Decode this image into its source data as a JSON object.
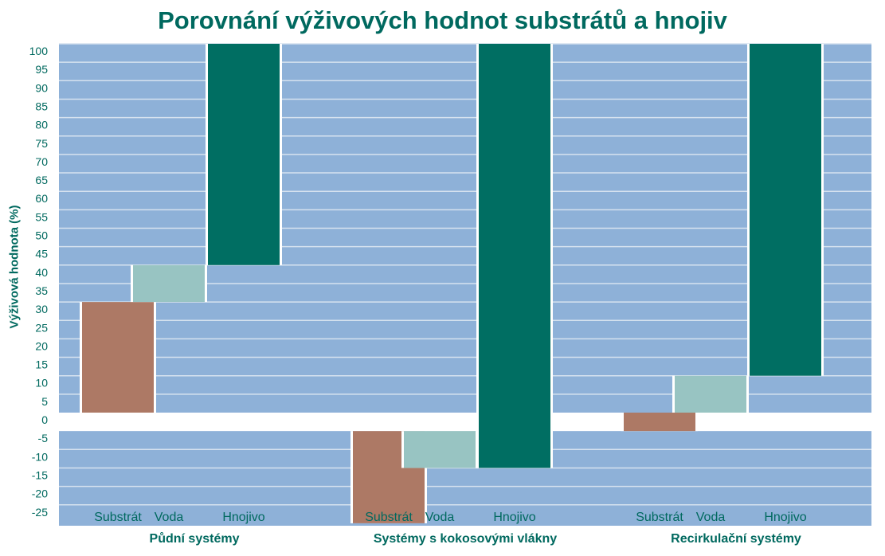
{
  "chart_data": {
    "type": "bar",
    "title": "Porovnání výživových hodnot substrátů a hnojiv",
    "ylabel": "Výživová hodnota (%)",
    "ylim": [
      -25,
      100
    ],
    "yticks": [
      100,
      95,
      90,
      85,
      80,
      75,
      70,
      65,
      60,
      55,
      50,
      45,
      40,
      35,
      30,
      25,
      20,
      15,
      10,
      5,
      0,
      -5,
      -10,
      -15,
      -20,
      -25
    ],
    "ytick_labels": [
      "100",
      "95",
      "90",
      "85",
      "80",
      "75",
      "70",
      "65",
      "60",
      "55",
      "50",
      "45",
      "40",
      "35",
      "30",
      "25",
      "20",
      "15",
      "10",
      "5",
      "0",
      "-5",
      "-10",
      "-15",
      "-20",
      "-25"
    ],
    "categories": [
      "Substrát",
      "Voda",
      "Hnojivo"
    ],
    "groups": [
      {
        "name": "Půdní systémy",
        "bars": [
          {
            "label": "Substrát",
            "from": 0,
            "to": 30
          },
          {
            "label": "Voda",
            "from": 30,
            "to": 40
          },
          {
            "label": "Hnojivo",
            "from": 40,
            "to": 100
          }
        ]
      },
      {
        "name": "Systémy s kokosovými vlákny",
        "bars": [
          {
            "label": "Substrát",
            "from": -5,
            "to": -30
          },
          {
            "label": "Voda",
            "from": -5,
            "to": -15
          },
          {
            "label": "Hnojivo",
            "from": -15,
            "to": 100
          }
        ]
      },
      {
        "name": "Recirkulační systémy",
        "bars": [
          {
            "label": "Substrát",
            "from": 0,
            "to": -5
          },
          {
            "label": "Voda",
            "from": 0,
            "to": 10
          },
          {
            "label": "Hnojivo",
            "from": 10,
            "to": 100
          }
        ]
      }
    ],
    "colors": {
      "Substrát": "#ad7965",
      "Voda": "#98c4c2",
      "Hnojivo": "#006e62",
      "background": "#8eb1d8",
      "grid": "#d6e2ef",
      "text": "#00695f"
    },
    "grid": true,
    "legend": "none"
  }
}
